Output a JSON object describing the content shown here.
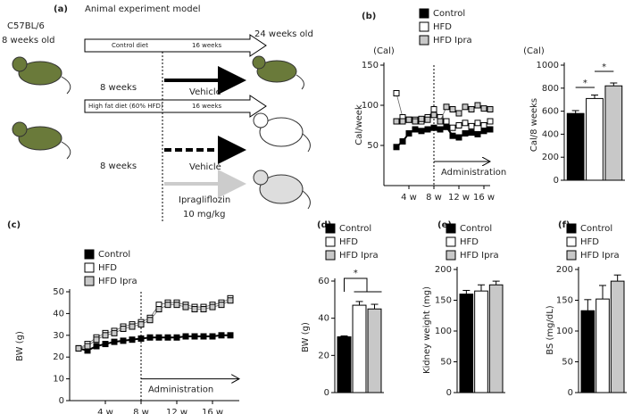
{
  "diagram": {
    "label": "(a)",
    "title": "Animal experiment model",
    "strain": "C57BL/6",
    "start_age": "8 weeks old",
    "end_age": "24 weeks old",
    "control_diet": "Control diet",
    "control_duration": "16 weeks",
    "hfd_diet": "High fat diet (60% HFD)",
    "hfd_duration": "16 weeks",
    "pre_period_1": "8 weeks",
    "pre_period_2": "8 weeks",
    "vehicle_1": "Vehicle",
    "vehicle_2": "Vehicle",
    "drug": "Ipragliflozin",
    "dose": "10 mg/kg"
  },
  "chart_data": [
    {
      "type": "line",
      "panel": "(b)",
      "unit": "(Cal)",
      "ylabel": "Cal/week",
      "x": [
        2,
        3,
        4,
        5,
        6,
        7,
        8,
        9,
        10,
        11,
        12,
        13,
        14,
        15,
        16,
        17
      ],
      "xlim": [
        0,
        17
      ],
      "xticks": [
        {
          "value": 4,
          "label": "4 w"
        },
        {
          "value": 8,
          "label": "8 w"
        },
        {
          "value": 12,
          "label": "12 w"
        },
        {
          "value": 16,
          "label": "16 w"
        }
      ],
      "ylim": [
        0,
        150
      ],
      "yticks": [
        50,
        100,
        150
      ],
      "vline": 8,
      "annotation": "Administration",
      "series": [
        {
          "name": "Control",
          "color": "#000000",
          "values": [
            48,
            55,
            65,
            70,
            68,
            70,
            72,
            70,
            73,
            62,
            60,
            65,
            66,
            64,
            68,
            70
          ]
        },
        {
          "name": "HFD",
          "color": "#ffffff",
          "values": [
            115,
            85,
            82,
            82,
            80,
            85,
            95,
            85,
            80,
            72,
            75,
            78,
            74,
            78,
            75,
            80
          ]
        },
        {
          "name": "HFD Ipra",
          "color": "#c8c8c8",
          "values": [
            80,
            80,
            82,
            80,
            83,
            82,
            88,
            80,
            98,
            95,
            90,
            98,
            95,
            100,
            96,
            95
          ]
        }
      ]
    },
    {
      "type": "bar",
      "unit": "(Cal)",
      "ylabel": "Cal/8 weeks",
      "values": [
        580,
        710,
        820
      ],
      "errors": [
        25,
        30,
        25
      ],
      "colors": [
        "#000000",
        "#ffffff",
        "#c8c8c8"
      ],
      "ylim": [
        0,
        1000
      ],
      "yticks": [
        0,
        200,
        400,
        600,
        800,
        1000
      ],
      "annotations": [
        "*",
        "*"
      ]
    },
    {
      "type": "line",
      "panel": "(c)",
      "ylabel": "BW (g)",
      "x": [
        1,
        2,
        3,
        4,
        5,
        6,
        7,
        8,
        9,
        10,
        11,
        12,
        13,
        14,
        15,
        16,
        17,
        18
      ],
      "xlim": [
        0,
        19
      ],
      "xticks": [
        {
          "value": 4,
          "label": "4 w"
        },
        {
          "value": 8,
          "label": "8 w"
        },
        {
          "value": 12,
          "label": "12 w"
        },
        {
          "value": 16,
          "label": "16 w"
        }
      ],
      "ylim": [
        0,
        50
      ],
      "yticks": [
        0,
        10,
        20,
        30,
        40,
        50
      ],
      "vline": 8,
      "annotation": "Administration",
      "series": [
        {
          "name": "Control",
          "color": "#000000",
          "values": [
            24,
            23,
            25,
            26,
            27,
            27.5,
            28,
            28.5,
            29,
            29,
            29,
            29,
            29.5,
            29.5,
            29.5,
            29.5,
            30,
            30
          ]
        },
        {
          "name": "HFD",
          "color": "#ffffff",
          "values": [
            24,
            26,
            29,
            31,
            32,
            34,
            35,
            36,
            38,
            44,
            45,
            45,
            44,
            43,
            43,
            44,
            45,
            47
          ]
        },
        {
          "name": "HFD Ipra",
          "color": "#c8c8c8",
          "values": [
            24,
            25,
            28,
            30,
            31,
            33,
            34,
            35,
            37,
            42,
            44,
            44,
            43,
            42,
            42,
            43,
            44,
            46
          ]
        }
      ]
    },
    {
      "type": "bar",
      "panel": "(d)",
      "ylabel": "BW (g)",
      "categories": [
        "Control",
        "HFD",
        "HFD Ipra"
      ],
      "values": [
        30,
        47,
        45
      ],
      "errors": [
        0.5,
        2,
        2.5
      ],
      "colors": [
        "#000000",
        "#ffffff",
        "#c8c8c8"
      ],
      "ylim": [
        0,
        60
      ],
      "yticks": [
        0,
        20,
        40,
        60
      ],
      "annotations": [
        "*"
      ]
    },
    {
      "type": "bar",
      "panel": "(e)",
      "ylabel": "Kidney weight (mg)",
      "categories": [
        "Control",
        "HFD",
        "HFD Ipra"
      ],
      "values": [
        160,
        165,
        175
      ],
      "errors": [
        6,
        10,
        6
      ],
      "colors": [
        "#000000",
        "#ffffff",
        "#c8c8c8"
      ],
      "ylim": [
        0,
        200
      ],
      "yticks": [
        0,
        50,
        100,
        150,
        200
      ]
    },
    {
      "type": "bar",
      "panel": "(f)",
      "ylabel": "BS (mg/dL)",
      "categories": [
        "Control",
        "HFD",
        "HFD Ipra"
      ],
      "values": [
        133,
        152,
        181
      ],
      "errors": [
        18,
        22,
        10
      ],
      "colors": [
        "#000000",
        "#ffffff",
        "#c8c8c8"
      ],
      "ylim": [
        0,
        200
      ],
      "yticks": [
        0,
        50,
        100,
        150,
        200
      ]
    }
  ]
}
